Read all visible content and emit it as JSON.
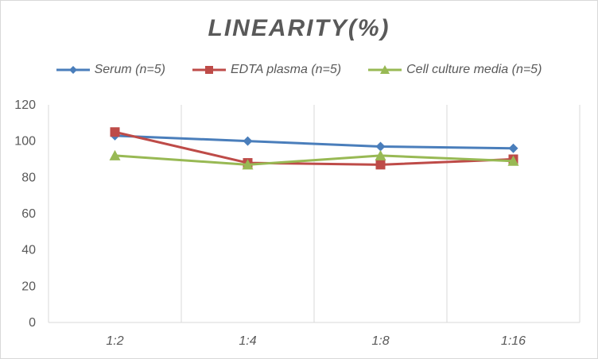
{
  "chart_data": {
    "type": "line",
    "title": "LINEARITY(%)",
    "categories": [
      "1:2",
      "1:4",
      "1:8",
      "1:16"
    ],
    "ylim": [
      0,
      120
    ],
    "yticks": [
      0,
      20,
      40,
      60,
      80,
      100,
      120
    ],
    "grid": "vertical",
    "legend_position": "top",
    "series": [
      {
        "name": "Serum (n=5)",
        "values": [
          103,
          100,
          97,
          96
        ],
        "color": "#4a7ebb",
        "marker": "diamond"
      },
      {
        "name": "EDTA plasma (n=5)",
        "values": [
          105,
          88,
          87,
          90
        ],
        "color": "#be4b48",
        "marker": "square"
      },
      {
        "name": "Cell culture media (n=5)",
        "values": [
          92,
          87,
          92,
          89
        ],
        "color": "#98b954",
        "marker": "triangle"
      }
    ]
  }
}
